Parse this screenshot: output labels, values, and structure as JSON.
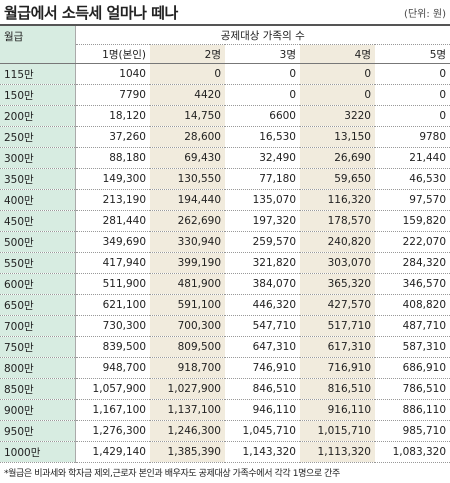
{
  "title": "월급에서 소득세 얼마나 떼나",
  "unit": "(단위: 원)",
  "header": {
    "row_label": "월급",
    "group": "공제대상 가족의 수",
    "columns": [
      "1명(본인)",
      "2명",
      "3명",
      "4명",
      "5명"
    ]
  },
  "rows": [
    {
      "label": "115만",
      "values": [
        "1040",
        "0",
        "0",
        "0",
        "0"
      ]
    },
    {
      "label": "150만",
      "values": [
        "7790",
        "4420",
        "0",
        "0",
        "0"
      ]
    },
    {
      "label": "200만",
      "values": [
        "18,120",
        "14,750",
        "6600",
        "3220",
        "0"
      ]
    },
    {
      "label": "250만",
      "values": [
        "37,260",
        "28,600",
        "16,530",
        "13,150",
        "9780"
      ]
    },
    {
      "label": "300만",
      "values": [
        "88,180",
        "69,430",
        "32,490",
        "26,690",
        "21,440"
      ]
    },
    {
      "label": "350만",
      "values": [
        "149,300",
        "130,550",
        "77,180",
        "59,650",
        "46,530"
      ]
    },
    {
      "label": "400만",
      "values": [
        "213,190",
        "194,440",
        "135,070",
        "116,320",
        "97,570"
      ]
    },
    {
      "label": "450만",
      "values": [
        "281,440",
        "262,690",
        "197,320",
        "178,570",
        "159,820"
      ]
    },
    {
      "label": "500만",
      "values": [
        "349,690",
        "330,940",
        "259,570",
        "240,820",
        "222,070"
      ]
    },
    {
      "label": "550만",
      "values": [
        "417,940",
        "399,190",
        "321,820",
        "303,070",
        "284,320"
      ]
    },
    {
      "label": "600만",
      "values": [
        "511,900",
        "481,900",
        "384,070",
        "365,320",
        "346,570"
      ]
    },
    {
      "label": "650만",
      "values": [
        "621,100",
        "591,100",
        "446,320",
        "427,570",
        "408,820"
      ]
    },
    {
      "label": "700만",
      "values": [
        "730,300",
        "700,300",
        "547,710",
        "517,710",
        "487,710"
      ]
    },
    {
      "label": "750만",
      "values": [
        "839,500",
        "809,500",
        "647,310",
        "617,310",
        "587,310"
      ]
    },
    {
      "label": "800만",
      "values": [
        "948,700",
        "918,700",
        "746,910",
        "716,910",
        "686,910"
      ]
    },
    {
      "label": "850만",
      "values": [
        "1,057,900",
        "1,027,900",
        "846,510",
        "816,510",
        "786,510"
      ]
    },
    {
      "label": "900만",
      "values": [
        "1,167,100",
        "1,137,100",
        "946,110",
        "916,110",
        "886,110"
      ]
    },
    {
      "label": "950만",
      "values": [
        "1,276,300",
        "1,246,300",
        "1,045,710",
        "1,015,710",
        "985,710"
      ]
    },
    {
      "label": "1000만",
      "values": [
        "1,429,140",
        "1,385,390",
        "1,143,320",
        "1,113,320",
        "1,083,320"
      ]
    }
  ],
  "footnote": "*월급은 비과세와 학자금 제외,근로자 본인과 배우자도 공제대상 가족수에서 각각 1명으로 간주"
}
